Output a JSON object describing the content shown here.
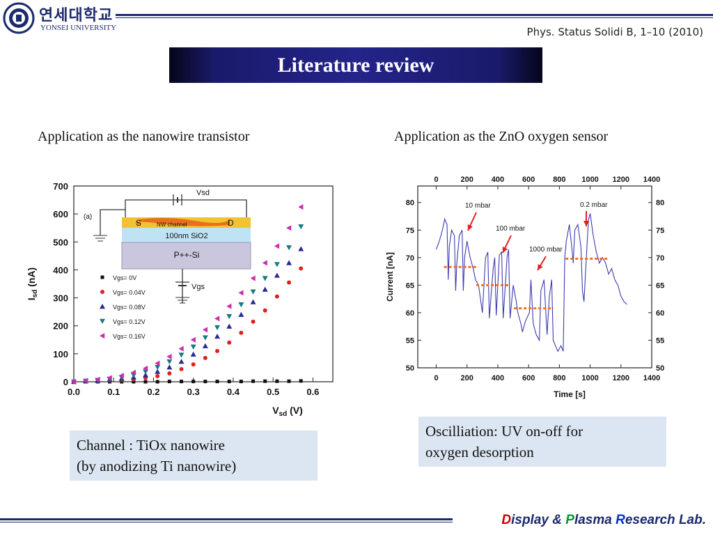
{
  "header": {
    "university_ko": "연세대학교",
    "university_en": "YONSEI UNIVERSITY",
    "citation": "Phys. Status Solidi B, 1–10 (2010)"
  },
  "title": "Literature review",
  "left": {
    "heading": "Application as the nanowire transistor",
    "caption_line1": "Channel : TiOx nanowire",
    "caption_line2": "(by anodizing Ti nanowire)"
  },
  "right": {
    "heading": "Application as the ZnO oxygen sensor",
    "caption_line1": "Oscilliation: UV on-off for",
    "caption_line2": "oxygen desorption"
  },
  "footer": {
    "d": "D",
    "isplay": "isplay & ",
    "p": "P",
    "lasma": "lasma ",
    "r": "R",
    "esearch": "esearch Lab."
  },
  "chart_data": [
    {
      "type": "scatter",
      "xlabel": "Vsd (V)",
      "ylabel": "Isd (nA)",
      "xlim": [
        0.0,
        0.65
      ],
      "ylim": [
        0,
        700
      ],
      "xticks": [
        "0.0",
        "0.1",
        "0.2",
        "0.3",
        "0.4",
        "0.5",
        "0.6"
      ],
      "yticks": [
        "0",
        "100",
        "200",
        "300",
        "400",
        "500",
        "600",
        "700"
      ],
      "panel_label": "(a)",
      "inset": {
        "vsd_label": "Vsd",
        "vgs_label": "Vgs",
        "s_label": "S",
        "d_label": "D",
        "channel_label": "NW channel",
        "oxide_label": "100nm SiO2",
        "substrate_label": "P++-Si"
      },
      "x": [
        0.0,
        0.03,
        0.06,
        0.09,
        0.12,
        0.15,
        0.18,
        0.21,
        0.24,
        0.27,
        0.3,
        0.33,
        0.36,
        0.39,
        0.42,
        0.45,
        0.48,
        0.51,
        0.54,
        0.57
      ],
      "series": [
        {
          "name": "Vgs= 0V",
          "color": "#111111",
          "marker": "square",
          "values": [
            0,
            0,
            0,
            0,
            0,
            0,
            0,
            0,
            1,
            1,
            1,
            1,
            1,
            1,
            1,
            2,
            2,
            2,
            2,
            3
          ]
        },
        {
          "name": "Vgs= 0.04V",
          "color": "#e02020",
          "marker": "circle",
          "values": [
            0,
            1,
            2,
            4,
            6,
            9,
            14,
            20,
            30,
            45,
            62,
            85,
            110,
            140,
            175,
            215,
            255,
            305,
            355,
            405
          ]
        },
        {
          "name": "Vgs= 0.08V",
          "color": "#2a2a90",
          "marker": "triangle-up",
          "values": [
            0,
            2,
            4,
            7,
            11,
            16,
            24,
            36,
            52,
            72,
            98,
            128,
            162,
            198,
            240,
            285,
            330,
            380,
            425,
            475
          ]
        },
        {
          "name": "Vgs= 0.12V",
          "color": "#1a7a80",
          "marker": "triangle-down",
          "values": [
            0,
            3,
            6,
            10,
            16,
            24,
            36,
            52,
            72,
            96,
            125,
            158,
            194,
            234,
            276,
            322,
            370,
            420,
            480,
            555
          ]
        },
        {
          "name": "Vgs= 0.16V",
          "color": "#d02ab0",
          "marker": "triangle-left",
          "values": [
            0,
            4,
            8,
            14,
            22,
            33,
            48,
            66,
            90,
            118,
            150,
            186,
            226,
            270,
            318,
            370,
            425,
            485,
            550,
            625
          ]
        }
      ]
    },
    {
      "type": "line",
      "xlabel": "Time [s]",
      "ylabel": "Current [nA]",
      "xlim": [
        -120,
        1400
      ],
      "ylim": [
        50,
        83
      ],
      "xticks": [
        "0",
        "200",
        "400",
        "600",
        "800",
        "1000",
        "1200",
        "1400"
      ],
      "yticks": [
        "50",
        "55",
        "60",
        "65",
        "70",
        "75",
        "80"
      ],
      "annotations": [
        "10 mbar",
        "100 mbar",
        "1000 mbar",
        "0.2 mbar"
      ],
      "baselines": [
        {
          "x0": 50,
          "x1": 270,
          "y": 68.3
        },
        {
          "x0": 260,
          "x1": 480,
          "y": 65.0
        },
        {
          "x0": 505,
          "x1": 760,
          "y": 60.8
        },
        {
          "x0": 840,
          "x1": 1120,
          "y": 69.8
        }
      ],
      "series": [
        {
          "color": "#3b3bb0",
          "x": [
            0,
            20,
            40,
            55,
            70,
            78,
            85,
            100,
            118,
            126,
            134,
            150,
            168,
            176,
            184,
            200,
            220,
            240,
            255,
            275,
            290,
            300,
            320,
            335,
            345,
            370,
            380,
            390,
            410,
            425,
            435,
            460,
            470,
            480,
            500,
            520,
            530,
            550,
            560,
            580,
            605,
            615,
            630,
            650,
            670,
            680,
            700,
            720,
            735,
            750,
            760,
            775,
            790,
            810,
            825,
            835,
            845,
            865,
            880,
            890,
            900,
            920,
            940,
            950,
            960,
            975,
            985,
            990,
            1000,
            1020,
            1040,
            1060,
            1080,
            1100,
            1120,
            1140,
            1160,
            1180,
            1200,
            1220,
            1240
          ],
          "y": [
            71.5,
            73,
            75,
            77,
            76,
            66,
            72,
            75,
            74,
            64,
            69,
            74,
            75,
            64,
            70,
            73,
            70,
            68,
            66,
            65,
            62,
            60,
            70,
            71,
            59,
            68,
            70,
            59.5,
            70.5,
            71,
            59,
            70,
            71.5,
            59,
            65,
            62,
            60,
            58,
            56.5,
            58.5,
            60,
            66,
            58,
            56,
            55,
            64,
            66,
            56,
            63,
            66,
            55,
            54,
            53,
            54,
            53,
            70,
            73,
            76,
            72,
            69,
            75,
            76,
            72,
            64,
            62,
            70,
            75,
            77,
            78,
            74,
            71,
            69,
            70,
            69,
            67,
            68,
            66,
            65,
            63,
            62,
            61.5
          ]
        }
      ]
    }
  ]
}
